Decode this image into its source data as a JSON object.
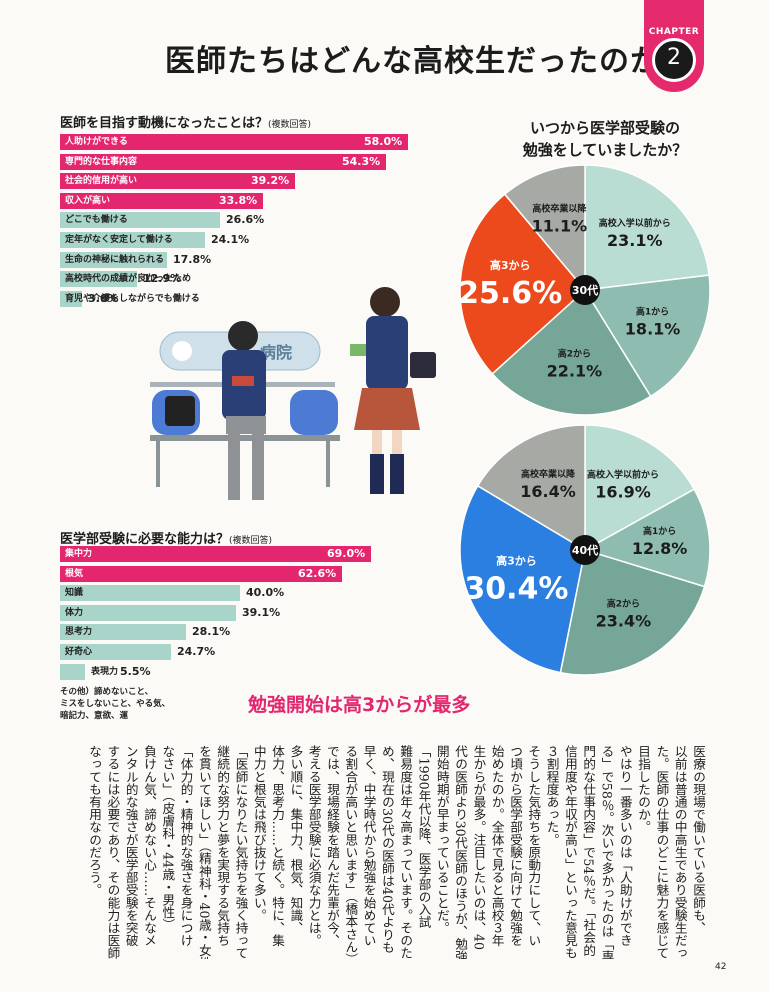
{
  "title": "医師たちはどんな高校生だったのか",
  "chapter": {
    "label": "CHAPTER",
    "number": "2"
  },
  "q1": {
    "question": "医師を目指す動機になったことは？",
    "note": "(複数回答)",
    "items": [
      {
        "label": "人助けができる",
        "value": "58.0",
        "pct": 58.0
      },
      {
        "label": "専門的な仕事内容",
        "value": "54.3",
        "pct": 54.3
      },
      {
        "label": "社会的信用が高い",
        "value": "39.2",
        "pct": 39.2
      },
      {
        "label": "収入が高い",
        "value": "33.8",
        "pct": 33.8
      },
      {
        "label": "どこでも働ける",
        "value": "26.6",
        "pct": 26.6
      },
      {
        "label": "定年がなく安定して働ける",
        "value": "24.1",
        "pct": 24.1
      },
      {
        "label": "生命の神秘に触れられる",
        "value": "17.8",
        "pct": 17.8
      },
      {
        "label": "高校時代の成績が良かったため",
        "value": "12.9",
        "pct": 12.9
      },
      {
        "label": "育児や介護をしながらでも働ける",
        "value": "3.6",
        "pct": 3.6
      }
    ]
  },
  "q2": {
    "question": "医学部受験に必要な能力は？",
    "note": "(複数回答)",
    "items": [
      {
        "label": "集中力",
        "value": "69.0",
        "pct": 69.0
      },
      {
        "label": "根気",
        "value": "62.6",
        "pct": 62.6
      },
      {
        "label": "知識",
        "value": "40.0",
        "pct": 40.0
      },
      {
        "label": "体力",
        "value": "39.1",
        "pct": 39.1
      },
      {
        "label": "思考力",
        "value": "28.1",
        "pct": 28.1
      },
      {
        "label": "好奇心",
        "value": "24.7",
        "pct": 24.7
      },
      {
        "label": "表現力",
        "value": "5.5",
        "pct": 5.5
      }
    ],
    "other": [
      "その他）諦めないこと、",
      "ミスをしないこと、やる気、",
      "暗記力、意欲、運"
    ]
  },
  "pie_question": [
    "いつから医学部受験の",
    "勉強をしていましたか？"
  ],
  "percent_sign": "%",
  "illustration": {
    "sign_text": "病院"
  },
  "chart_data": [
    {
      "type": "bar",
      "title": "医師を目指す動機になったことは？",
      "categories": [
        "人助けができる",
        "専門的な仕事内容",
        "社会的信用が高い",
        "収入が高い",
        "どこでも働ける",
        "定年がなく安定して働ける",
        "生命の神秘に触れられる",
        "高校時代の成績が良かったため",
        "育児や介護をしながらでも働ける"
      ],
      "values": [
        58.0,
        54.3,
        39.2,
        33.8,
        26.6,
        24.1,
        17.8,
        12.9,
        3.6
      ],
      "unit": "%"
    },
    {
      "type": "bar",
      "title": "医学部受験に必要な能力は？",
      "categories": [
        "集中力",
        "根気",
        "知識",
        "体力",
        "思考力",
        "好奇心",
        "表現力"
      ],
      "values": [
        69.0,
        62.6,
        40.0,
        39.1,
        28.1,
        24.7,
        5.5
      ],
      "unit": "%"
    },
    {
      "type": "pie",
      "center": "30代",
      "slices": [
        {
          "label": "高校入学以前から",
          "value": 23.1,
          "text": "23.1",
          "color": "#b9dcd3"
        },
        {
          "label": "高1から",
          "value": 18.1,
          "text": "18.1",
          "color": "#8fbcb0"
        },
        {
          "label": "高2から",
          "value": 22.1,
          "text": "22.1",
          "color": "#75a697"
        },
        {
          "label": "高3から",
          "value": 25.6,
          "text": "25.6",
          "color": "#ec4a1c"
        },
        {
          "label": "高校卒業以降",
          "value": 11.1,
          "text": "11.1",
          "color": "#a6a9a4"
        }
      ]
    },
    {
      "type": "pie",
      "center": "40代",
      "slices": [
        {
          "label": "高校入学以前から",
          "value": 16.9,
          "text": "16.9",
          "color": "#b9dcd3"
        },
        {
          "label": "高1から",
          "value": 12.8,
          "text": "12.8",
          "color": "#8fbcb0"
        },
        {
          "label": "高2から",
          "value": 23.4,
          "text": "23.4",
          "color": "#75a697"
        },
        {
          "label": "高3から",
          "value": 30.4,
          "text": "30.4",
          "color": "#2a7fe0"
        },
        {
          "label": "高校卒業以降",
          "value": 16.4,
          "text": "16.4",
          "color": "#a6a9a4"
        }
      ]
    }
  ],
  "headline": "勉強開始は高3からが最多",
  "body_columns": [
    "医療の現場で働いている医師も、",
    "以前は普通の中高生であり受験生だっ",
    "た。医師の仕事のどこに魅力を感じて",
    "目指したのか。",
    "やはり一番多いのは「人助けができ",
    "る」で58％。次いで多かったのは「専",
    "門的な仕事内容」で54％だ。「社会的",
    "信用度や年収が高い」といった意見も",
    "３割程度あった。",
    "そうした気持ちを原動力にして、い",
    "つ頃から医学部受験に向けて勉強を",
    "始めたのか。全体で見ると高校３年",
    "生からが最多。注目したいのは、40",
    "代の医師より30代医師のほうが、勉強",
    "開始時期が早まっていることだ。",
    "「1990年代以降、医学部の入試",
    "難易度は年々高まっています。そのた",
    "め、現在の30代の医師は40代よりも",
    "早く、中学時代から勉強を始めてい",
    "る割合が高いと思います」（橋本さん）",
    "では、現場経験を踏んだ先輩が今、",
    "考える医学部受験に必須な力とは。",
    "多い順に、集中力、根気、知識、",
    "体力、思考力……と続く。特に、集",
    "中力と根気は飛び抜けて多い。",
    "「医師になりたい気持ちを強く持って、",
    "継続的な努力と夢を実現する気持ち",
    "を貫いてほしい」（精神科・40歳・女性）",
    "「体力的・精神的な強さを身につけ",
    "なさい」（皮膚科・44歳・男性）",
    "負けん気、諦めない心……そんなメ",
    "ンタル的な強さが医学部受験を突破",
    "するには必要であり、その能力は医師に",
    "なっても有用なのだろう。"
  ],
  "page_number": "42"
}
